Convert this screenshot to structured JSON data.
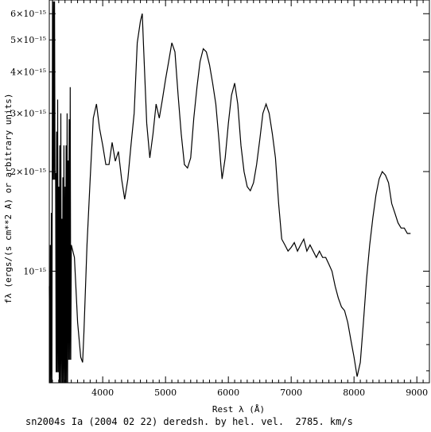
{
  "chart_data": {
    "type": "line",
    "title": "",
    "caption": "sn2004s Ia (2004 02 22) deredsh. by hel. vel.  2785. km/s",
    "xlabel": "Rest λ (Å)",
    "ylabel": "fλ (ergs/(s cm**2 A) or arbitrary units)",
    "yscale": "log",
    "xlim": [
      3150,
      9200
    ],
    "ylim": [
      4.6e-16,
      6.6e-15
    ],
    "xticks": [
      4000,
      5000,
      6000,
      7000,
      8000,
      9000
    ],
    "xtick_labels": [
      "4000",
      "5000",
      "6000",
      "7000",
      "8000",
      "9000"
    ],
    "yticks": [
      1e-15,
      2e-15,
      3e-15,
      4e-15,
      5e-15,
      6e-15
    ],
    "ytick_labels": [
      "10⁻¹⁵",
      "2×10⁻¹⁵",
      "3×10⁻¹⁵",
      "4×10⁻¹⁵",
      "5×10⁻¹⁵",
      "6×10⁻¹⁵"
    ],
    "grid": false,
    "series": [
      {
        "x": [
          3150,
          3200,
          3250,
          3300,
          3350,
          3400,
          3450,
          3500,
          3550,
          3600,
          3650,
          3680,
          3700,
          3750,
          3800,
          3850,
          3900,
          3950,
          4000,
          4050,
          4100,
          4150,
          4200,
          4250,
          4300,
          4350,
          4400,
          4450,
          4500,
          4550,
          4600,
          4630,
          4650,
          4700,
          4750,
          4800,
          4850,
          4900,
          4950,
          5000,
          5050,
          5100,
          5150,
          5200,
          5250,
          5300,
          5350,
          5400,
          5450,
          5500,
          5550,
          5600,
          5650,
          5700,
          5750,
          5800,
          5850,
          5880,
          5900,
          5950,
          6000,
          6050,
          6100,
          6150,
          6200,
          6250,
          6300,
          6350,
          6400,
          6450,
          6500,
          6550,
          6600,
          6650,
          6700,
          6750,
          6800,
          6850,
          6900,
          6950,
          7000,
          7050,
          7100,
          7150,
          7200,
          7250,
          7300,
          7350,
          7400,
          7450,
          7500,
          7550,
          7600,
          7650,
          7700,
          7750,
          7800,
          7850,
          7900,
          7950,
          8000,
          8050,
          8100,
          8150,
          8200,
          8250,
          8300,
          8350,
          8400,
          8450,
          8500,
          8550,
          8600,
          8650,
          8700,
          8750,
          8800,
          8850,
          8900
        ],
        "y": [
          5e-16,
          4.2e-15,
          1.1e-15,
          1e-15,
          8e-16,
          1e-15,
          1.2e-15,
          1.2e-15,
          1.1e-15,
          7e-16,
          5.5e-16,
          5.3e-16,
          6.5e-16,
          1.2e-15,
          1.9e-15,
          2.9e-15,
          3.2e-15,
          2.7e-15,
          2.4e-15,
          2.1e-15,
          2.1e-15,
          2.45e-15,
          2.15e-15,
          2.3e-15,
          1.9e-15,
          1.65e-15,
          1.9e-15,
          2.4e-15,
          3e-15,
          4.9e-15,
          5.7e-15,
          6e-15,
          4.8e-15,
          2.8e-15,
          2.2e-15,
          2.6e-15,
          3.2e-15,
          2.9e-15,
          3.3e-15,
          3.8e-15,
          4.3e-15,
          4.9e-15,
          4.6e-15,
          3.4e-15,
          2.6e-15,
          2.1e-15,
          2.05e-15,
          2.2e-15,
          2.9e-15,
          3.6e-15,
          4.3e-15,
          4.7e-15,
          4.6e-15,
          4.2e-15,
          3.7e-15,
          3.2e-15,
          2.5e-15,
          2.1e-15,
          1.9e-15,
          2.2e-15,
          2.8e-15,
          3.4e-15,
          3.7e-15,
          3.2e-15,
          2.4e-15,
          2e-15,
          1.8e-15,
          1.75e-15,
          1.85e-15,
          2.1e-15,
          2.5e-15,
          3e-15,
          3.2e-15,
          3e-15,
          2.6e-15,
          2.2e-15,
          1.6e-15,
          1.25e-15,
          1.2e-15,
          1.15e-15,
          1.18e-15,
          1.22e-15,
          1.15e-15,
          1.2e-15,
          1.25e-15,
          1.15e-15,
          1.2e-15,
          1.15e-15,
          1.1e-15,
          1.15e-15,
          1.1e-15,
          1.1e-15,
          1.05e-15,
          1e-15,
          9e-16,
          8.3e-16,
          7.8e-16,
          7.6e-16,
          7e-16,
          6.2e-16,
          5.5e-16,
          4.8e-16,
          5.3e-16,
          7e-16,
          9.5e-16,
          1.2e-15,
          1.45e-15,
          1.7e-15,
          1.9e-15,
          2e-15,
          1.95e-15,
          1.85e-15,
          1.6e-15,
          1.5e-15,
          1.4e-15,
          1.35e-15,
          1.35e-15,
          1.3e-15,
          1.3e-15
        ],
        "noisy_region_x": [
          3150,
          3450
        ]
      }
    ]
  }
}
